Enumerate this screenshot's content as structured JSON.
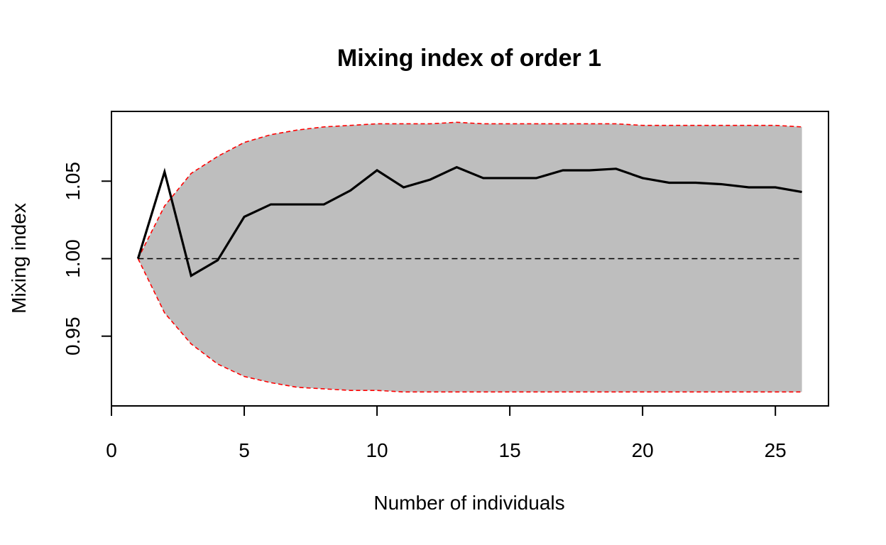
{
  "chart_data": {
    "type": "line",
    "title": "Mixing index of order 1",
    "xlabel": "Number of individuals",
    "ylabel": "Mixing index",
    "xlim": [
      0,
      27
    ],
    "ylim": [
      0.905,
      1.095
    ],
    "x_ticks": [
      0,
      5,
      10,
      15,
      20,
      25
    ],
    "y_ticks": [
      0.95,
      1.0,
      1.05
    ],
    "y_tick_labels": [
      "0.95",
      "1.00",
      "1.05"
    ],
    "reference_line": 1.0,
    "x": [
      1,
      2,
      3,
      4,
      5,
      6,
      7,
      8,
      9,
      10,
      11,
      12,
      13,
      14,
      15,
      16,
      17,
      18,
      19,
      20,
      21,
      22,
      23,
      24,
      25,
      26
    ],
    "series": [
      {
        "values": [
          1.0,
          1.056,
          0.989,
          0.999,
          1.027,
          1.035,
          1.035,
          1.035,
          1.044,
          1.057,
          1.046,
          1.051,
          1.059,
          1.052,
          1.052,
          1.052,
          1.057,
          1.057,
          1.058,
          1.052,
          1.049,
          1.049,
          1.048,
          1.046,
          1.046,
          1.043
        ]
      }
    ],
    "envelope": {
      "upper": [
        1.0,
        1.034,
        1.055,
        1.066,
        1.075,
        1.08,
        1.083,
        1.085,
        1.086,
        1.087,
        1.087,
        1.087,
        1.088,
        1.087,
        1.087,
        1.087,
        1.087,
        1.087,
        1.087,
        1.086,
        1.086,
        1.086,
        1.086,
        1.086,
        1.086,
        1.085
      ],
      "lower": [
        1.0,
        0.965,
        0.945,
        0.932,
        0.924,
        0.92,
        0.917,
        0.916,
        0.915,
        0.915,
        0.914,
        0.914,
        0.914,
        0.914,
        0.914,
        0.914,
        0.914,
        0.914,
        0.914,
        0.914,
        0.914,
        0.914,
        0.914,
        0.914,
        0.914,
        0.914
      ]
    },
    "colors": {
      "line": "#000000",
      "envelope_fill": "#bebebe",
      "envelope_border": "#ff0000",
      "reference": "#000000"
    },
    "grid": false
  }
}
